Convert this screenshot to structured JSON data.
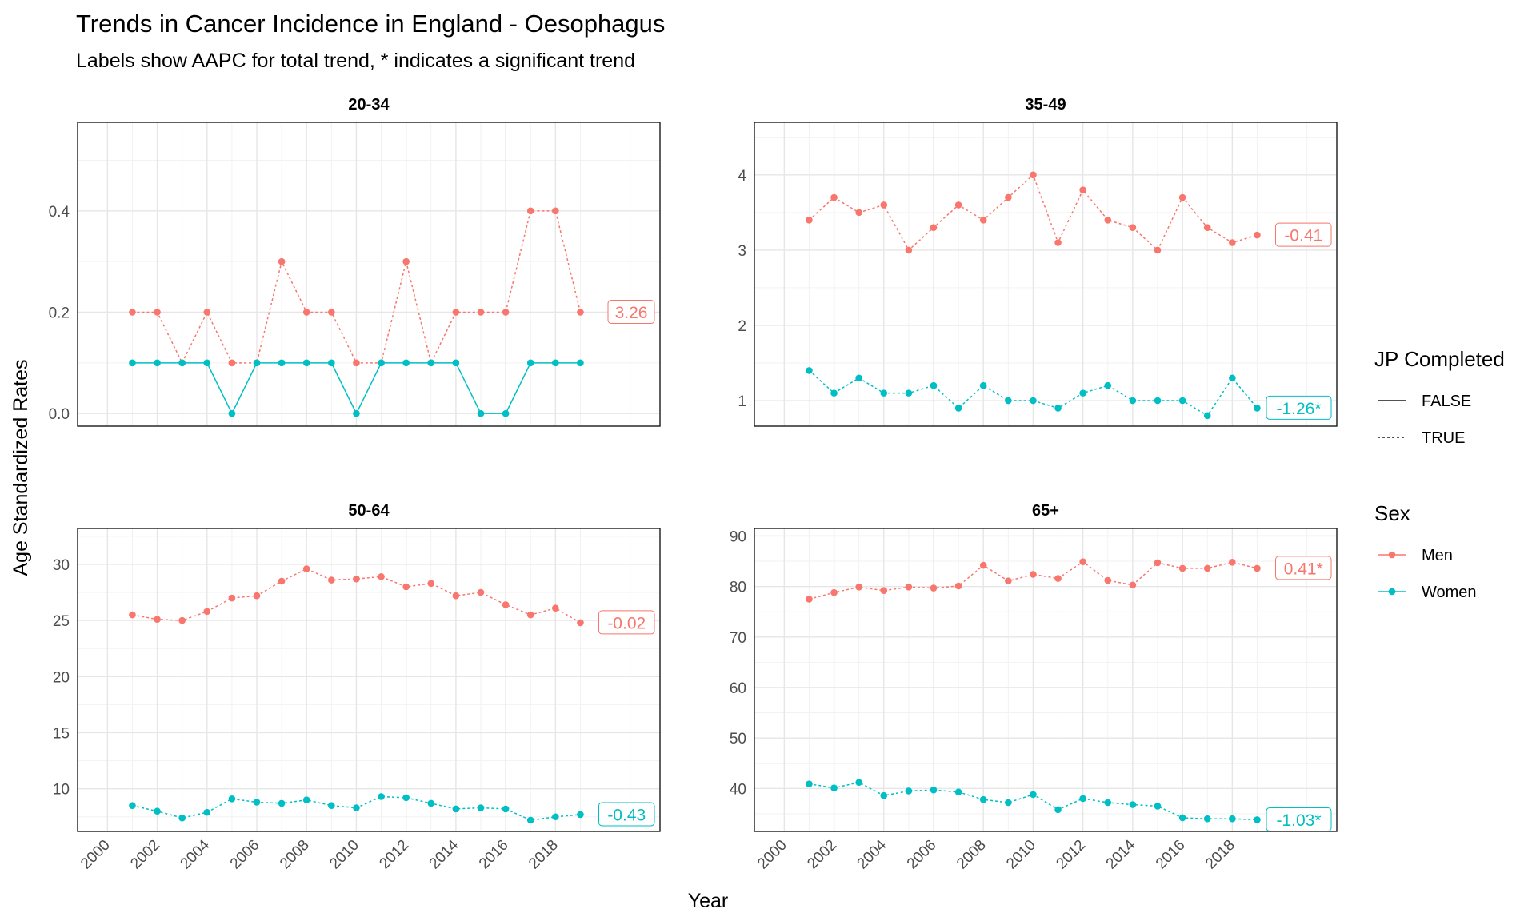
{
  "chart_data": {
    "type": "line",
    "title": "Trends in Cancer Incidence in England - Oesophagus",
    "subtitle": "Labels show AAPC for total trend, * indicates a significant trend",
    "xlabel": "Year",
    "ylabel": "Age Standardized Rates",
    "years": [
      2001,
      2002,
      2003,
      2004,
      2005,
      2006,
      2007,
      2008,
      2009,
      2010,
      2011,
      2012,
      2013,
      2014,
      2015,
      2016,
      2017,
      2018,
      2019
    ],
    "x_ticks": [
      "2000",
      "2002",
      "2004",
      "2006",
      "2008",
      "2010",
      "2012",
      "2014",
      "2016",
      "2018"
    ],
    "x_ticks_values": [
      2000,
      2002,
      2004,
      2006,
      2008,
      2010,
      2012,
      2014,
      2016,
      2018
    ],
    "xlim": [
      1998.8,
      2022.2
    ],
    "grid": true,
    "colors": {
      "Men": "#F8766D",
      "Women": "#00BFC4"
    },
    "legend": {
      "position": "right",
      "linetype_title": "JP Completed",
      "linetype_items": [
        {
          "label": "FALSE",
          "dash": "solid"
        },
        {
          "label": "TRUE",
          "dash": "dotted"
        }
      ],
      "color_title": "Sex",
      "color_items": [
        {
          "label": "Men",
          "color": "#F8766D"
        },
        {
          "label": "Women",
          "color": "#00BFC4"
        }
      ]
    },
    "panels": [
      {
        "strip": "20-34",
        "ylim": [
          -0.025,
          0.575
        ],
        "y_ticks": [
          "0.0",
          "0.2",
          "0.4"
        ],
        "y_ticks_values": [
          0,
          0.2,
          0.4
        ],
        "series": [
          {
            "name": "Men",
            "jp_completed": true,
            "aapc_label": "3.26",
            "values": [
              0.2,
              0.2,
              0.1,
              0.2,
              0.1,
              0.1,
              0.3,
              0.2,
              0.2,
              0.1,
              0.1,
              0.3,
              0.1,
              0.2,
              0.2,
              0.2,
              0.4,
              0.4,
              0.2
            ]
          },
          {
            "name": "Women",
            "jp_completed": false,
            "aapc_label": "",
            "values": [
              0.1,
              0.1,
              0.1,
              0.1,
              0.0,
              0.1,
              0.1,
              0.1,
              0.1,
              0.0,
              0.1,
              0.1,
              0.1,
              0.1,
              0.0,
              0.0,
              0.1,
              0.1,
              0.1
            ]
          }
        ]
      },
      {
        "strip": "35-49",
        "ylim": [
          0.66,
          4.7
        ],
        "y_ticks": [
          "1",
          "2",
          "3",
          "4"
        ],
        "y_ticks_values": [
          1,
          2,
          3,
          4
        ],
        "series": [
          {
            "name": "Men",
            "jp_completed": true,
            "aapc_label": "-0.41",
            "values": [
              3.4,
              3.7,
              3.5,
              3.6,
              3.0,
              3.3,
              3.6,
              3.4,
              3.7,
              4.0,
              3.1,
              3.8,
              3.4,
              3.3,
              3.0,
              3.7,
              3.3,
              3.1,
              3.2
            ]
          },
          {
            "name": "Women",
            "jp_completed": true,
            "aapc_label": "-1.26*",
            "values": [
              1.4,
              1.1,
              1.3,
              1.1,
              1.1,
              1.2,
              0.9,
              1.2,
              1.0,
              1.0,
              0.9,
              1.1,
              1.2,
              1.0,
              1.0,
              1.0,
              0.8,
              1.3,
              0.9
            ]
          }
        ]
      },
      {
        "strip": "50-64",
        "ylim": [
          6.2,
          33.2
        ],
        "y_ticks": [
          "10",
          "15",
          "20",
          "25",
          "30"
        ],
        "y_ticks_values": [
          10,
          15,
          20,
          25,
          30
        ],
        "series": [
          {
            "name": "Men",
            "jp_completed": true,
            "aapc_label": "-0.02",
            "values": [
              25.5,
              25.1,
              25.0,
              25.8,
              27.0,
              27.2,
              28.5,
              29.6,
              28.6,
              28.7,
              28.9,
              28.0,
              28.3,
              27.2,
              27.5,
              26.4,
              25.5,
              26.1,
              24.8
            ]
          },
          {
            "name": "Women",
            "jp_completed": true,
            "aapc_label": "-0.43",
            "values": [
              8.5,
              8.0,
              7.4,
              7.9,
              9.1,
              8.8,
              8.7,
              9.0,
              8.5,
              8.3,
              9.3,
              9.2,
              8.7,
              8.2,
              8.3,
              8.2,
              7.2,
              7.5,
              7.7
            ]
          }
        ]
      },
      {
        "strip": "65+",
        "ylim": [
          31.5,
          91.5
        ],
        "y_ticks": [
          "40",
          "50",
          "60",
          "70",
          "80",
          "90"
        ],
        "y_ticks_values": [
          40,
          50,
          60,
          70,
          80,
          90
        ],
        "series": [
          {
            "name": "Men",
            "jp_completed": true,
            "aapc_label": "0.41*",
            "values": [
              77.5,
              78.8,
              79.9,
              79.2,
              79.9,
              79.7,
              80.1,
              84.2,
              81.1,
              82.4,
              81.6,
              84.9,
              81.2,
              80.3,
              84.7,
              83.6,
              83.6,
              84.8,
              83.6
            ]
          },
          {
            "name": "Women",
            "jp_completed": true,
            "aapc_label": "-1.03*",
            "values": [
              40.9,
              40.1,
              41.2,
              38.6,
              39.5,
              39.7,
              39.3,
              37.8,
              37.2,
              38.8,
              35.8,
              38.0,
              37.2,
              36.8,
              36.5,
              34.2,
              34.0,
              34.0,
              33.8
            ]
          }
        ]
      }
    ]
  }
}
